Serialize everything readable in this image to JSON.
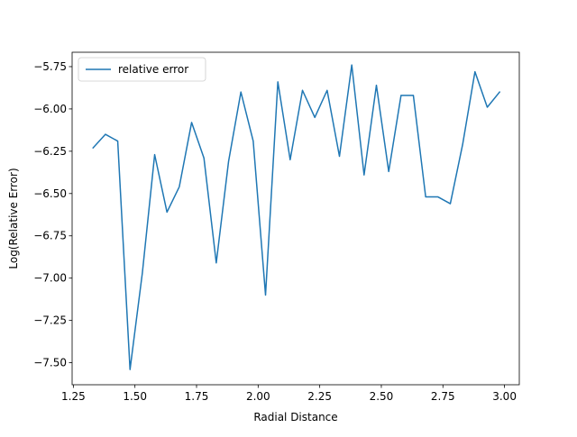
{
  "chart_data": {
    "type": "line",
    "xlabel": "Radial Distance",
    "ylabel": "Log(Relative Error)",
    "xlim": [
      1.245,
      3.06
    ],
    "ylim": [
      -7.63,
      -5.665
    ],
    "xticks": [
      1.25,
      1.5,
      1.75,
      2.0,
      2.25,
      2.5,
      2.75,
      3.0
    ],
    "xtick_labels": [
      "1.25",
      "1.50",
      "1.75",
      "2.00",
      "2.25",
      "2.50",
      "2.75",
      "3.00"
    ],
    "yticks": [
      -7.5,
      -7.25,
      -7.0,
      -6.75,
      -6.5,
      -6.25,
      -6.0,
      -5.75
    ],
    "ytick_labels": [
      "−7.50",
      "−7.25",
      "−7.00",
      "−6.75",
      "−6.50",
      "−6.25",
      "−6.00",
      "−5.75"
    ],
    "grid": false,
    "legend_position": "upper left",
    "series": [
      {
        "name": "relative error",
        "color": "#1f77b4",
        "x": [
          1.33,
          1.38,
          1.43,
          1.48,
          1.53,
          1.58,
          1.63,
          1.68,
          1.73,
          1.78,
          1.83,
          1.88,
          1.93,
          1.98,
          2.03,
          2.08,
          2.13,
          2.18,
          2.23,
          2.28,
          2.33,
          2.38,
          2.43,
          2.48,
          2.53,
          2.58,
          2.63,
          2.68,
          2.73,
          2.78,
          2.83,
          2.88,
          2.93,
          2.98
        ],
        "y": [
          -6.23,
          -6.15,
          -6.19,
          -7.54,
          -6.97,
          -6.27,
          -6.61,
          -6.46,
          -6.08,
          -6.29,
          -6.91,
          -6.31,
          -5.9,
          -6.19,
          -7.1,
          -5.84,
          -6.3,
          -5.89,
          -6.05,
          -5.89,
          -6.28,
          -5.74,
          -6.39,
          -5.86,
          -6.37,
          -5.92,
          -5.92,
          -6.52,
          -6.52,
          -6.56,
          -6.21,
          -5.78,
          -5.99,
          -5.9
        ]
      }
    ]
  }
}
